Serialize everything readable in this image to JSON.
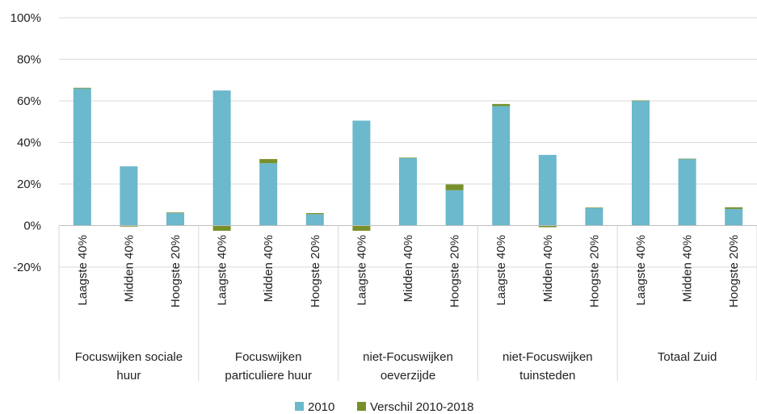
{
  "chart_data": {
    "type": "bar",
    "stacked": true,
    "y_ticks": [
      "100%",
      "80%",
      "60%",
      "40%",
      "20%",
      "0%",
      "-20%"
    ],
    "ylim": [
      -20,
      100
    ],
    "grid": true,
    "legend_position": "bottom",
    "groups": [
      {
        "label": "Focuswijken sociale huur",
        "lines": [
          "Focuswijken sociale",
          "huur"
        ]
      },
      {
        "label": "Focuswijken particuliere huur",
        "lines": [
          "Focuswijken",
          "particuliere huur"
        ]
      },
      {
        "label": "niet-Focuswijken oeverzijde",
        "lines": [
          "niet-Focuswijken",
          "oeverzijde"
        ]
      },
      {
        "label": "niet-Focuswijken tuinsteden",
        "lines": [
          "niet-Focuswijken",
          "tuinsteden"
        ]
      },
      {
        "label": "Totaal Zuid",
        "lines": [
          "Totaal Zuid"
        ]
      }
    ],
    "categories": [
      "Laagste 40%",
      "Midden 40%",
      "Hoogste 20%",
      "Laagste 40%",
      "Midden 40%",
      "Hoogste 20%",
      "Laagste 40%",
      "Midden 40%",
      "Hoogste 20%",
      "Laagste 40%",
      "Midden 40%",
      "Hoogste 20%",
      "Laagste 40%",
      "Midden 40%",
      "Hoogste 20%"
    ],
    "series": [
      {
        "name": "2010",
        "color": "#6cb8cc",
        "values": [
          66,
          28.5,
          6,
          65,
          30,
          5.5,
          50.5,
          32.5,
          17,
          57.5,
          34,
          8.5,
          60,
          32,
          8
        ]
      },
      {
        "name": "Verschil 2010-2018",
        "color": "#77902a",
        "values": [
          0.3,
          -0.5,
          0.3,
          -2.5,
          2,
          0.5,
          -2.5,
          0.2,
          2.8,
          1,
          -0.8,
          0.2,
          0.2,
          0.2,
          0.8
        ]
      }
    ]
  }
}
